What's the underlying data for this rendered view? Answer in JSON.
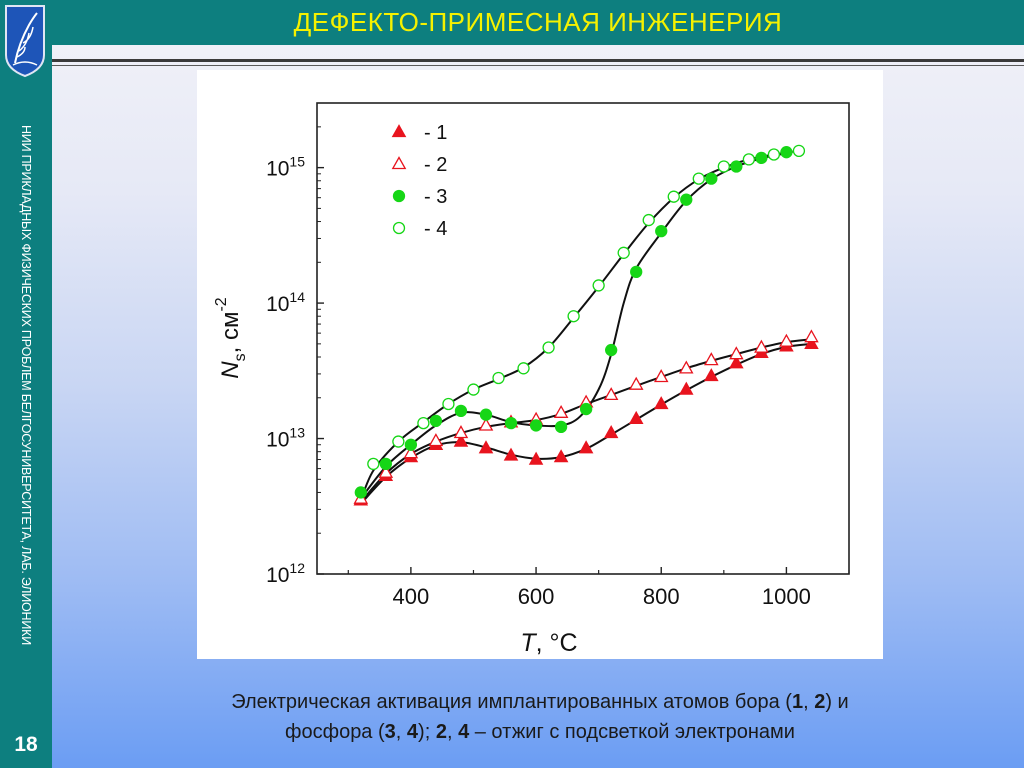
{
  "header": {
    "title": "ДЕФЕКТО-ПРИМЕСНАЯ ИНЖЕНЕРИЯ"
  },
  "sidebar": {
    "text": "НИИ ПРИКЛАДНЫХ ФИЗИЧЕСКИХ ПРОБЛЕМ БЕЛГОСУНИВЕРСИТЕТА, ЛАБ. ЭЛИОНИКИ",
    "page_number": "18",
    "logo_icon": "university-crest-icon"
  },
  "caption": {
    "l1_a": "Электрическая активация имплантированных атомов бора (",
    "l1_b1": "1",
    "l1_c": ", ",
    "l1_b2": "2",
    "l1_d": ") и",
    "l2_a": "фосфора (",
    "l2_b1": "3",
    "l2_c": ", ",
    "l2_b2": "4",
    "l2_d": "); ",
    "l2_b3": "2",
    "l2_e": ", ",
    "l2_b4": "4",
    "l2_f": " – отжиг с подсветкой электронами"
  },
  "colors": {
    "sidebar": "#0d7f7f",
    "title": "#f5f100",
    "series_red": "#e8141e",
    "series_green": "#16d616"
  },
  "chart_data": {
    "type": "scatter",
    "x_scale": "linear",
    "y_scale": "log",
    "xlim": [
      250,
      1100
    ],
    "ylim": [
      1000000000000.0,
      3000000000000000.0
    ],
    "x_ticks": [
      400,
      600,
      800,
      1000
    ],
    "x_tick_labels": [
      "400",
      "600",
      "800",
      "1000"
    ],
    "y_ticks": [
      1000000000000.0,
      10000000000000.0,
      100000000000000.0,
      1000000000000000.0
    ],
    "y_tick_labels": [
      {
        "base": "10",
        "exp": "12"
      },
      {
        "base": "10",
        "exp": "13"
      },
      {
        "base": "10",
        "exp": "14"
      },
      {
        "base": "10",
        "exp": "15"
      }
    ],
    "xlabel": {
      "var": "T",
      "unit": ", °C"
    },
    "ylabel": {
      "var": "N",
      "sub": "s",
      "unit": ", см",
      "exp": "-2"
    },
    "legend_position": "top-left",
    "grid": false,
    "series": [
      {
        "name": "- 1",
        "marker": "triangle",
        "filled": true,
        "color": "#e8141e",
        "x": [
          320,
          360,
          400,
          440,
          480,
          520,
          560,
          600,
          640,
          680,
          720,
          760,
          800,
          840,
          880,
          920,
          960,
          1000,
          1040
        ],
        "y": [
          3500000000000.0,
          5300000000000.0,
          7300000000000.0,
          9000000000000.0,
          9500000000000.0,
          8500000000000.0,
          7500000000000.0,
          7000000000000.0,
          7300000000000.0,
          8500000000000.0,
          11000000000000.0,
          14000000000000.0,
          18000000000000.0,
          23000000000000.0,
          29000000000000.0,
          36000000000000.0,
          43000000000000.0,
          48000000000000.0,
          50000000000000.0
        ],
        "curve": [
          [
            320,
            3300000000000.0
          ],
          [
            360,
            5200000000000.0
          ],
          [
            400,
            7200000000000.0
          ],
          [
            440,
            8900000000000.0
          ],
          [
            480,
            9400000000000.0
          ],
          [
            520,
            8600000000000.0
          ],
          [
            560,
            7600000000000.0
          ],
          [
            600,
            7100000000000.0
          ],
          [
            640,
            7300000000000.0
          ],
          [
            680,
            8400000000000.0
          ],
          [
            720,
            10700000000000.0
          ],
          [
            760,
            13800000000000.0
          ],
          [
            800,
            17800000000000.0
          ],
          [
            840,
            22700000000000.0
          ],
          [
            880,
            28500000000000.0
          ],
          [
            920,
            35000000000000.0
          ],
          [
            960,
            42000000000000.0
          ],
          [
            1000,
            47500000000000.0
          ],
          [
            1040,
            50000000000000.0
          ]
        ]
      },
      {
        "name": "- 2",
        "marker": "triangle",
        "filled": false,
        "color": "#e8141e",
        "x": [
          320,
          360,
          400,
          440,
          480,
          520,
          560,
          600,
          640,
          680,
          720,
          760,
          800,
          840,
          880,
          920,
          960,
          1000,
          1040
        ],
        "y": [
          3600000000000.0,
          5600000000000.0,
          7800000000000.0,
          9600000000000.0,
          11000000000000.0,
          12500000000000.0,
          13200000000000.0,
          13800000000000.0,
          15500000000000.0,
          18500000000000.0,
          21000000000000.0,
          25000000000000.0,
          28500000000000.0,
          33000000000000.0,
          38000000000000.0,
          42000000000000.0,
          47000000000000.0,
          52000000000000.0,
          56000000000000.0
        ],
        "curve": [
          [
            320,
            3400000000000.0
          ],
          [
            360,
            5500000000000.0
          ],
          [
            400,
            7700000000000.0
          ],
          [
            440,
            9500000000000.0
          ],
          [
            480,
            11000000000000.0
          ],
          [
            520,
            12200000000000.0
          ],
          [
            560,
            13000000000000.0
          ],
          [
            600,
            13700000000000.0
          ],
          [
            640,
            15200000000000.0
          ],
          [
            680,
            18000000000000.0
          ],
          [
            720,
            21000000000000.0
          ],
          [
            760,
            24500000000000.0
          ],
          [
            800,
            28500000000000.0
          ],
          [
            840,
            33000000000000.0
          ],
          [
            880,
            37500000000000.0
          ],
          [
            920,
            42000000000000.0
          ],
          [
            960,
            47000000000000.0
          ],
          [
            1000,
            51500000000000.0
          ],
          [
            1040,
            54000000000000.0
          ]
        ]
      },
      {
        "name": "- 3",
        "marker": "circle",
        "filled": true,
        "color": "#16d616",
        "x": [
          320,
          360,
          400,
          440,
          480,
          520,
          560,
          600,
          640,
          680,
          720,
          760,
          800,
          840,
          880,
          920,
          960,
          1000
        ],
        "y": [
          4000000000000.0,
          6500000000000.0,
          9000000000000.0,
          13500000000000.0,
          16000000000000.0,
          15000000000000.0,
          13000000000000.0,
          12500000000000.0,
          12200000000000.0,
          16500000000000.0,
          45000000000000.0,
          170000000000000.0,
          340000000000000.0,
          580000000000000.0,
          830000000000000.0,
          1020000000000000.0,
          1180000000000000.0,
          1300000000000000.0
        ],
        "curve": [
          [
            320,
            3600000000000.0
          ],
          [
            360,
            6200000000000.0
          ],
          [
            400,
            9000000000000.0
          ],
          [
            440,
            12500000000000.0
          ],
          [
            480,
            15500000000000.0
          ],
          [
            520,
            15000000000000.0
          ],
          [
            560,
            13200000000000.0
          ],
          [
            600,
            12500000000000.0
          ],
          [
            640,
            12500000000000.0
          ],
          [
            670,
            14500000000000.0
          ],
          [
            700,
            23000000000000.0
          ],
          [
            720,
            42000000000000.0
          ],
          [
            740,
            100000000000000.0
          ],
          [
            760,
            180000000000000.0
          ],
          [
            800,
            330000000000000.0
          ],
          [
            840,
            570000000000000.0
          ],
          [
            880,
            820000000000000.0
          ],
          [
            920,
            1020000000000000.0
          ],
          [
            960,
            1170000000000000.0
          ],
          [
            1000,
            1280000000000000.0
          ],
          [
            1010,
            1320000000000000.0
          ]
        ]
      },
      {
        "name": "- 4",
        "marker": "circle",
        "filled": false,
        "color": "#16d616",
        "x": [
          340,
          380,
          420,
          460,
          500,
          540,
          580,
          620,
          660,
          700,
          740,
          780,
          820,
          860,
          900,
          940,
          980,
          1020
        ],
        "y": [
          6500000000000.0,
          9500000000000.0,
          13000000000000.0,
          18000000000000.0,
          23000000000000.0,
          28000000000000.0,
          33000000000000.0,
          47000000000000.0,
          80000000000000.0,
          135000000000000.0,
          235000000000000.0,
          410000000000000.0,
          610000000000000.0,
          830000000000000.0,
          1020000000000000.0,
          1150000000000000.0,
          1250000000000000.0,
          1330000000000000.0
        ],
        "curve": [
          [
            320,
            3500000000000.0
          ],
          [
            340,
            5800000000000.0
          ],
          [
            380,
            9500000000000.0
          ],
          [
            420,
            13200000000000.0
          ],
          [
            460,
            18000000000000.0
          ],
          [
            500,
            23000000000000.0
          ],
          [
            540,
            27500000000000.0
          ],
          [
            580,
            33500000000000.0
          ],
          [
            620,
            47000000000000.0
          ],
          [
            660,
            78000000000000.0
          ],
          [
            700,
            132000000000000.0
          ],
          [
            740,
            230000000000000.0
          ],
          [
            780,
            390000000000000.0
          ],
          [
            820,
            600000000000000.0
          ],
          [
            860,
            820000000000000.0
          ],
          [
            900,
            1000000000000000.0
          ],
          [
            940,
            1150000000000000.0
          ],
          [
            980,
            1250000000000000.0
          ],
          [
            1010,
            1310000000000000.0
          ]
        ]
      }
    ]
  }
}
